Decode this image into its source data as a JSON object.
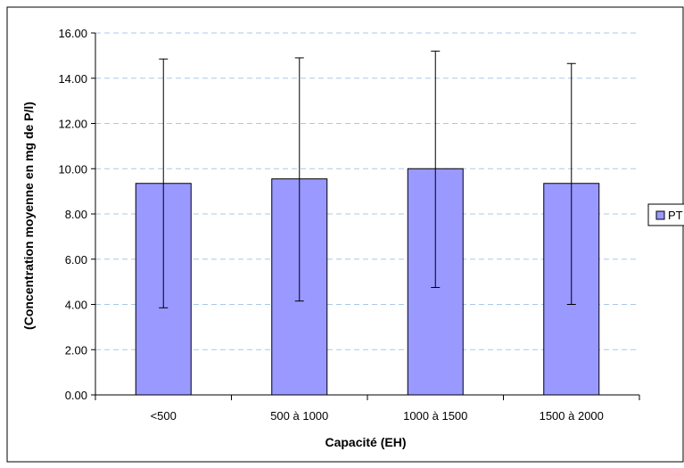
{
  "chart_data": {
    "type": "bar",
    "categories": [
      "<500",
      "500 à 1000",
      "1000 à 1500",
      "1500 à 2000"
    ],
    "series": [
      {
        "name": "PT",
        "values": [
          9.35,
          9.55,
          10.0,
          9.35
        ],
        "error_low": [
          3.85,
          4.15,
          4.75,
          4.0
        ],
        "error_high": [
          14.85,
          14.9,
          15.2,
          14.65
        ],
        "color": "#9999ff"
      }
    ],
    "title": "",
    "xlabel": "Capacité (EH)",
    "ylabel": "(Concentration moyenne en mg de P/l)",
    "ylim": [
      0,
      16
    ],
    "yticks": [
      "0.00",
      "2.00",
      "4.00",
      "6.00",
      "8.00",
      "10.00",
      "12.00",
      "14.00",
      "16.00"
    ],
    "ytick_values": [
      0,
      2,
      4,
      6,
      8,
      10,
      12,
      14,
      16
    ],
    "grid": "horizontal-dashed",
    "legend_position": "right",
    "legend_label": "PT"
  }
}
